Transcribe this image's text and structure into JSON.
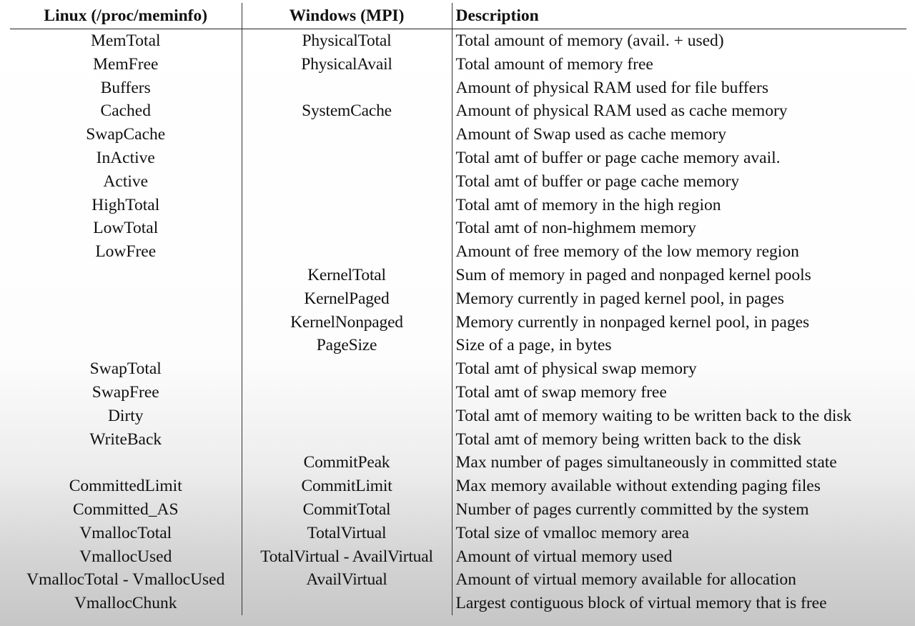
{
  "table": {
    "headers": {
      "linux": "Linux (/proc/meminfo)",
      "windows": "Windows (MPI)",
      "description": "Description"
    },
    "rows": [
      {
        "linux": "MemTotal",
        "windows": "PhysicalTotal",
        "description": "Total amount of memory (avail. + used)"
      },
      {
        "linux": "MemFree",
        "windows": "PhysicalAvail",
        "description": "Total amount of memory free"
      },
      {
        "linux": "Buffers",
        "windows": "",
        "description": "Amount of physical RAM used for file buffers"
      },
      {
        "linux": "Cached",
        "windows": "SystemCache",
        "description": "Amount of physical RAM used as cache memory"
      },
      {
        "linux": "SwapCache",
        "windows": "",
        "description": "Amount of Swap used as cache memory"
      },
      {
        "linux": "InActive",
        "windows": "",
        "description": "Total amt of buffer or page cache memory avail."
      },
      {
        "linux": "Active",
        "windows": "",
        "description": "Total amt of buffer or page cache memory"
      },
      {
        "linux": "HighTotal",
        "windows": "",
        "description": "Total amt of memory in the high region"
      },
      {
        "linux": "LowTotal",
        "windows": "",
        "description": "Total amt of non-highmem memory"
      },
      {
        "linux": "LowFree",
        "windows": "",
        "description": "Amount of free memory of the low memory region"
      },
      {
        "linux": "",
        "windows": "KernelTotal",
        "description": "Sum of memory in paged and nonpaged kernel pools"
      },
      {
        "linux": "",
        "windows": "KernelPaged",
        "description": "Memory currently in paged kernel pool, in pages"
      },
      {
        "linux": "",
        "windows": "KernelNonpaged",
        "description": "Memory currently in nonpaged kernel pool, in pages"
      },
      {
        "linux": "",
        "windows": "PageSize",
        "description": "Size of a page, in bytes"
      },
      {
        "linux": "SwapTotal",
        "windows": "",
        "description": "Total amt of physical swap memory"
      },
      {
        "linux": "SwapFree",
        "windows": "",
        "description": "Total amt of swap memory free"
      },
      {
        "linux": "Dirty",
        "windows": "",
        "description": "Total amt of memory waiting to be written back to the disk"
      },
      {
        "linux": "WriteBack",
        "windows": "",
        "description": "Total amt of memory being written back to the disk"
      },
      {
        "linux": "",
        "windows": "CommitPeak",
        "description": "Max number of pages simultaneously in committed state"
      },
      {
        "linux": "CommittedLimit",
        "windows": "CommitLimit",
        "description": "Max memory available without extending paging files"
      },
      {
        "linux": "Committed_AS",
        "windows": "CommitTotal",
        "description": "Number of pages currently committed by the system"
      },
      {
        "linux": "VmallocTotal",
        "windows": "TotalVirtual",
        "description": "Total size of vmalloc memory area"
      },
      {
        "linux": "VmallocUsed",
        "windows": "TotalVirtual - AvailVirtual",
        "description": "Amount of virtual memory used"
      },
      {
        "linux": "VmallocTotal - VmallocUsed",
        "windows": "AvailVirtual",
        "description": "Amount of virtual memory available for allocation"
      },
      {
        "linux": "VmallocChunk",
        "windows": "",
        "description": "Largest contiguous block of virtual memory that is free"
      }
    ]
  }
}
